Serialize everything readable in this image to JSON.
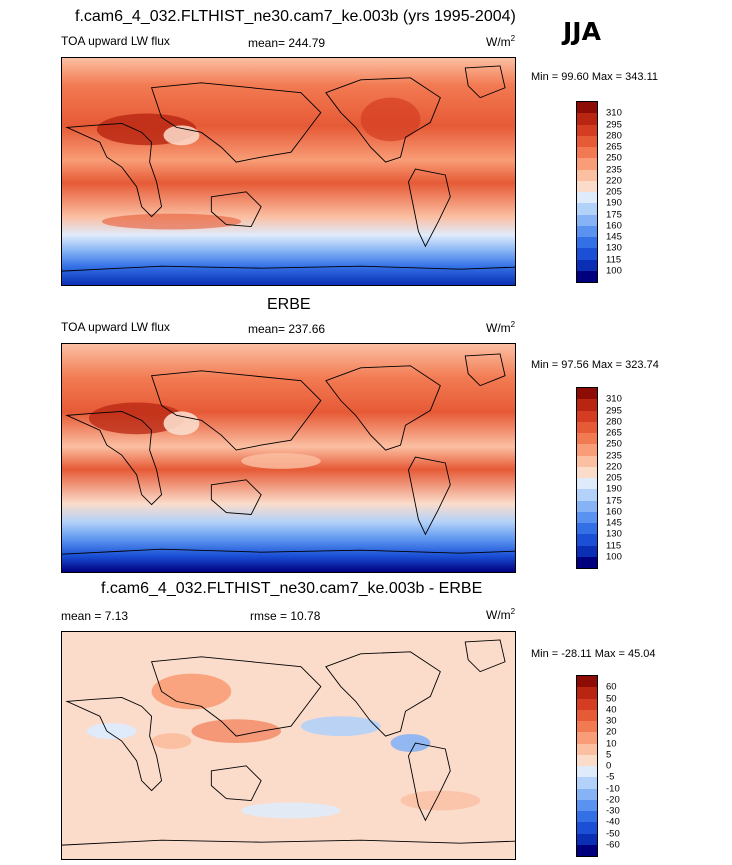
{
  "season": "JJA",
  "colors": {
    "abs": [
      "#00007f",
      "#0a2fb4",
      "#1a4fd6",
      "#3370e6",
      "#5a93ef",
      "#86b3f5",
      "#b3d2f9",
      "#dfebfb",
      "#fbdccb",
      "#fbbfa2",
      "#f89d77",
      "#f27a52",
      "#e65a36",
      "#d43d22",
      "#b82612",
      "#8e0c06"
    ],
    "diff": [
      "#00007f",
      "#0a2fb4",
      "#1a4fd6",
      "#3370e6",
      "#5a93ef",
      "#86b3f5",
      "#b3d2f9",
      "#dfebfb",
      "#fbdccb",
      "#fbbfa2",
      "#f89d77",
      "#f27a52",
      "#e65a36",
      "#d43d22",
      "#b82612",
      "#8e0c06"
    ]
  },
  "panels": [
    {
      "title": "f.cam6_4_032.FLTHIST_ne30.cam7_ke.003b (yrs 1995-2004)",
      "left_label": "TOA upward LW flux",
      "stat_label": "mean= 244.79",
      "units": "W/m",
      "units_exp": "2",
      "minmax": "Min =  99.60 Max = 343.11",
      "levels": [
        "310",
        "295",
        "280",
        "265",
        "250",
        "235",
        "220",
        "205",
        "190",
        "175",
        "160",
        "145",
        "130",
        "115",
        "100"
      ]
    },
    {
      "title": "ERBE",
      "left_label": "TOA upward LW flux",
      "stat_label": "mean= 237.66",
      "units": "W/m",
      "units_exp": "2",
      "minmax": "Min =  97.56 Max = 323.74",
      "levels": [
        "310",
        "295",
        "280",
        "265",
        "250",
        "235",
        "220",
        "205",
        "190",
        "175",
        "160",
        "145",
        "130",
        "115",
        "100"
      ]
    },
    {
      "title": "f.cam6_4_032.FLTHIST_ne30.cam7_ke.003b - ERBE",
      "left_label": "mean =   7.13",
      "stat_label": "rmse =  10.78",
      "units": "W/m",
      "units_exp": "2",
      "minmax": "Min = -28.11 Max =  45.04",
      "levels": [
        "60",
        "50",
        "40",
        "30",
        "20",
        "10",
        "5",
        "0",
        "-5",
        "-10",
        "-20",
        "-30",
        "-40",
        "-50",
        "-60"
      ]
    }
  ]
}
